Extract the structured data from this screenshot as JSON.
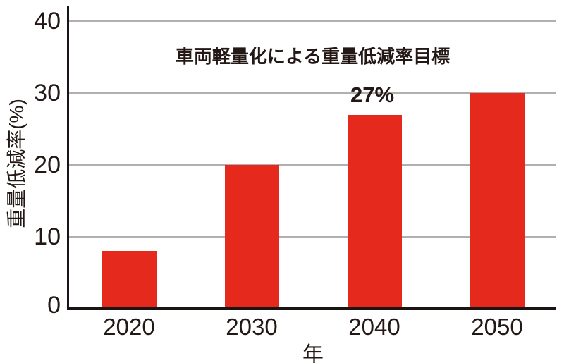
{
  "chart_data": {
    "type": "bar",
    "title": "車両軽量化による重量低減率目標",
    "xlabel": "年",
    "ylabel": "重量低減率(%)",
    "categories": [
      "2020",
      "2030",
      "2040",
      "2050"
    ],
    "values": [
      8,
      20,
      27,
      30
    ],
    "annotation": {
      "category_index": 2,
      "text": "27%"
    },
    "yticks": [
      0,
      10,
      20,
      30,
      40
    ],
    "ylim": [
      0,
      42
    ],
    "grid": "horizontal-gridlines-at-10-20-30-40",
    "legend": "none",
    "bar_color": "#e5291c",
    "grid_color": "#b1afaf",
    "axis_color": "#1a1512",
    "text_color": "#231815"
  }
}
